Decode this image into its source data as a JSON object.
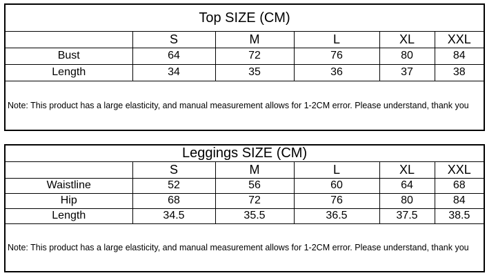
{
  "top": {
    "title": "Top  SIZE (CM)",
    "sizes": [
      "S",
      "M",
      "L",
      "XL",
      "XXL"
    ],
    "rows": [
      {
        "label": "Bust",
        "values": [
          "64",
          "72",
          "76",
          "80",
          "84"
        ]
      },
      {
        "label": "Length",
        "values": [
          "34",
          "35",
          "36",
          "37",
          "38"
        ]
      }
    ],
    "note": "Note: This product has a large elasticity, and manual measurement allows for 1-2CM error. Please understand, thank you"
  },
  "leggings": {
    "title": "Leggings SIZE (CM)",
    "sizes": [
      "S",
      "M",
      "L",
      "XL",
      "XXL"
    ],
    "rows": [
      {
        "label": "Waistline",
        "values": [
          "52",
          "56",
          "60",
          "64",
          "68"
        ]
      },
      {
        "label": "Hip",
        "values": [
          "68",
          "72",
          "76",
          "80",
          "84"
        ]
      },
      {
        "label": "Length",
        "values": [
          "34.5",
          "35.5",
          "36.5",
          "37.5",
          "38.5"
        ]
      }
    ],
    "note": "Note: This product has a large elasticity, and manual measurement allows for 1-2CM error. Please understand, thank you"
  }
}
